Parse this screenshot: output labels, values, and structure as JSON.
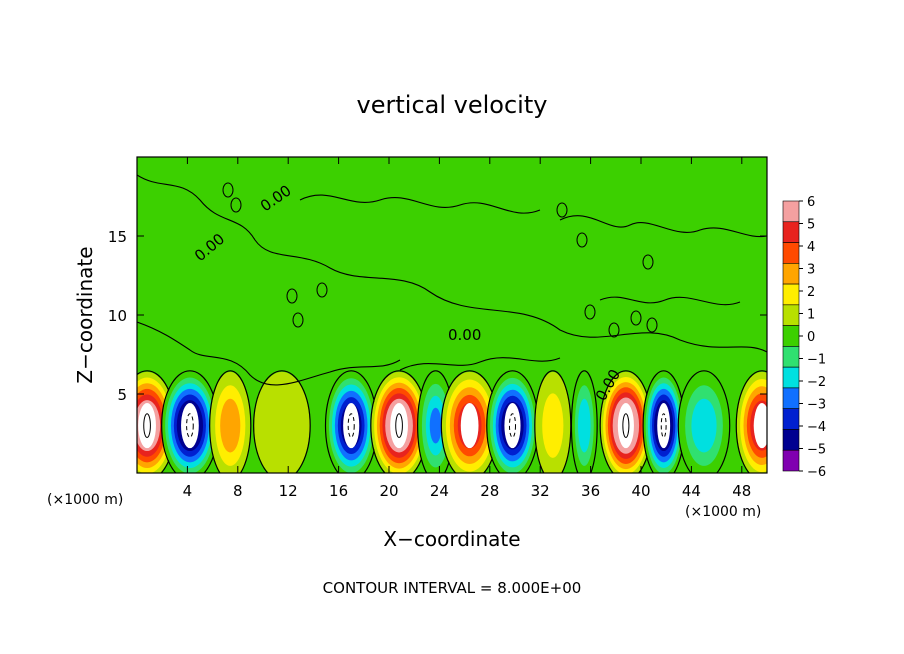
{
  "chart_data": {
    "type": "heatmap",
    "title": "vertical velocity",
    "xlabel": "X−coordinate",
    "ylabel": "Z−coordinate",
    "x_unit_left": "(×1000 m)",
    "x_unit_right": "(×1000 m)",
    "xlim": [
      0,
      50
    ],
    "ylim": [
      0,
      20
    ],
    "x_ticks": [
      "4",
      "8",
      "12",
      "16",
      "20",
      "24",
      "28",
      "32",
      "36",
      "40",
      "44",
      "48"
    ],
    "y_ticks": [
      "5",
      "10",
      "15"
    ],
    "contour_label": "0.00",
    "footer": "CONTOUR INTERVAL = 8.000E+00",
    "colorbar": {
      "ticks": [
        "6",
        "5",
        "4",
        "3",
        "2",
        "1",
        "0",
        "−1",
        "−2",
        "−3",
        "−4",
        "−5",
        "−6"
      ],
      "levels": [
        {
          "range": [
            5,
            6
          ],
          "color": "#f4a0a0"
        },
        {
          "range": [
            4,
            5
          ],
          "color": "#e8231e"
        },
        {
          "range": [
            3,
            4
          ],
          "color": "#ff4a00"
        },
        {
          "range": [
            2,
            3
          ],
          "color": "#ffa500"
        },
        {
          "range": [
            1,
            2
          ],
          "color": "#ffee00"
        },
        {
          "range": [
            0,
            1
          ],
          "color": "#b8e000"
        },
        {
          "range": [
            -1,
            0
          ],
          "color": "#3cd000"
        },
        {
          "range": [
            -2,
            -1
          ],
          "color": "#30e070"
        },
        {
          "range": [
            -3,
            -2
          ],
          "color": "#00e0e0"
        },
        {
          "range": [
            -4,
            -3
          ],
          "color": "#1070ff"
        },
        {
          "range": [
            -5,
            -4
          ],
          "color": "#0020d0"
        },
        {
          "range": [
            -6,
            -5
          ],
          "color": "#000090"
        },
        {
          "range": [
            -7,
            -6
          ],
          "color": "#8000b0"
        }
      ]
    },
    "cells": [
      {
        "x": 0.8,
        "w": 2.2,
        "w_peak": 9.0
      },
      {
        "x": 4.2,
        "w": 2.2,
        "w_peak": -9.0
      },
      {
        "x": 7.4,
        "w": 1.6,
        "w_peak": 3.5
      },
      {
        "x": 11.5,
        "w": 2.2,
        "w_peak": 1.5
      },
      {
        "x": 17.0,
        "w": 2.0,
        "w_peak": -8.0
      },
      {
        "x": 20.8,
        "w": 2.2,
        "w_peak": 9.5
      },
      {
        "x": 23.7,
        "w": 1.4,
        "w_peak": -4.0
      },
      {
        "x": 26.4,
        "w": 2.2,
        "w_peak": 6.5
      },
      {
        "x": 29.8,
        "w": 2.0,
        "w_peak": -8.5
      },
      {
        "x": 33.0,
        "w": 1.4,
        "w_peak": 2.0
      },
      {
        "x": 35.5,
        "w": 1.0,
        "w_peak": -3.5
      },
      {
        "x": 38.8,
        "w": 2.0,
        "w_peak": 10.0
      },
      {
        "x": 41.8,
        "w": 1.6,
        "w_peak": -9.0
      },
      {
        "x": 45.0,
        "w": 2.0,
        "w_peak": -3.5
      },
      {
        "x": 49.6,
        "w": 2.0,
        "w_peak": 7.0
      }
    ]
  }
}
